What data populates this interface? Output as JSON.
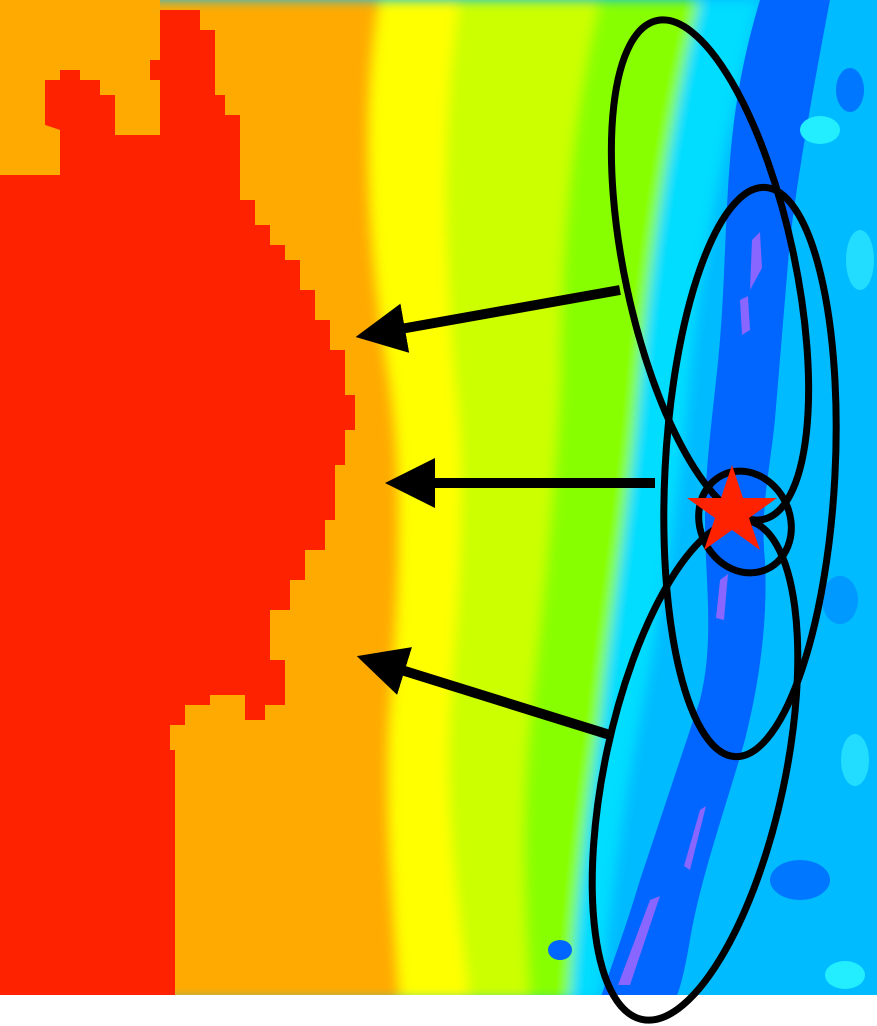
{
  "diagram": {
    "background": "#ffffff",
    "map_colors": {
      "red": "#ff2200",
      "orange": "#ffaa00",
      "yellow": "#ffff00",
      "yellow_green": "#ccff00",
      "green": "#88ff00",
      "cyan": "#00ddff",
      "light_blue": "#00bbff",
      "blue": "#0066ff",
      "violet": "#8866ff"
    },
    "outline_color": "#000000",
    "star_color": "#ff2200",
    "elements": [
      {
        "name": "ellipse-upper",
        "kind": "ellipse"
      },
      {
        "name": "ellipse-middle",
        "kind": "ellipse"
      },
      {
        "name": "ellipse-small",
        "kind": "ellipse"
      },
      {
        "name": "ellipse-lower",
        "kind": "ellipse"
      },
      {
        "name": "arrow-top",
        "kind": "arrow",
        "points_to": "left"
      },
      {
        "name": "arrow-middle",
        "kind": "arrow",
        "points_to": "left"
      },
      {
        "name": "arrow-bottom",
        "kind": "arrow",
        "points_to": "left"
      },
      {
        "name": "star-marker",
        "kind": "star-icon"
      }
    ]
  }
}
